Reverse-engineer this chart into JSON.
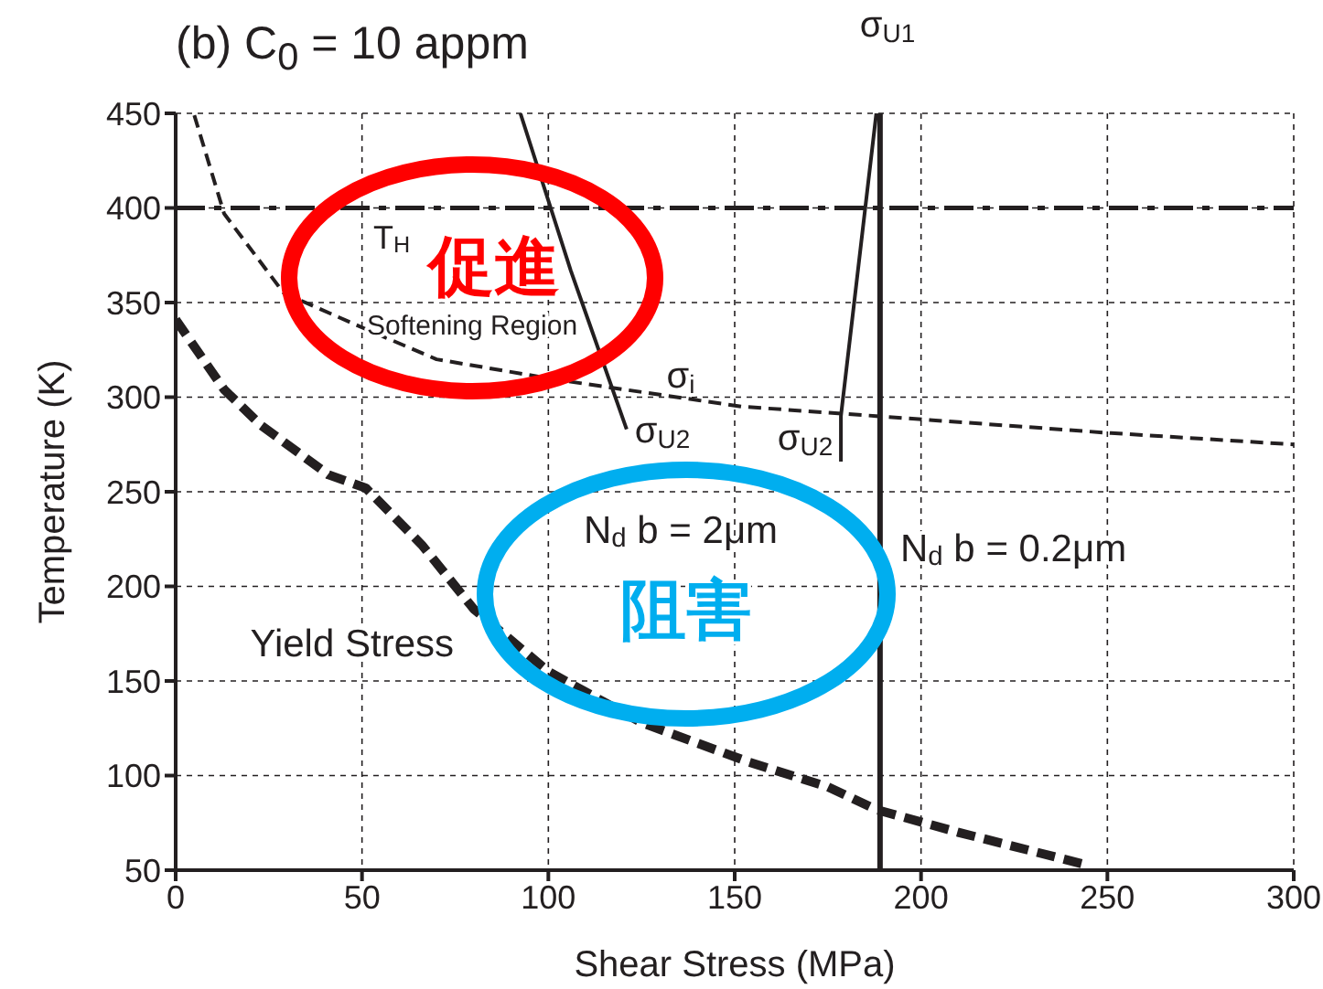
{
  "chart_data": {
    "type": "line",
    "title": "(b) C$_{0}$ = 10 appm",
    "xlabel": "Shear Stress (MPa)",
    "ylabel": "Temperature (K)",
    "xlim": [
      0,
      300
    ],
    "xticks": [
      0,
      50,
      100,
      150,
      200,
      250,
      300
    ],
    "ylim": [
      50,
      450
    ],
    "yticks": [
      50,
      100,
      150,
      200,
      250,
      300,
      350,
      400,
      450
    ],
    "grid": true,
    "marker": "none",
    "series": [
      {
        "color": "#231f20",
        "line_style": "dashed",
        "x": [
          0,
          13,
          23,
          41,
          51,
          66,
          80,
          100,
          125,
          154,
          175,
          188,
          210,
          230,
          244
        ],
        "values": [
          341,
          304,
          285,
          259,
          252,
          222,
          188,
          155,
          128,
          107,
          94,
          82,
          70,
          60,
          53
        ]
      },
      {
        "color": "#231f20",
        "line_style": "dashed",
        "x": [
          5,
          13,
          29,
          51,
          70,
          103,
          152,
          188,
          251,
          300
        ],
        "values": [
          449,
          397,
          355,
          336,
          320,
          309,
          295,
          290,
          281,
          275
        ]
      },
      {
        "color": "#231f20",
        "line_style": "solid",
        "x": [
          92.5,
          106,
          111,
          121
        ],
        "values": [
          450,
          367,
          339,
          283
        ]
      },
      {
        "color": "#231f20",
        "line_style": "solid",
        "x": [
          188,
          178.5,
          178.5
        ],
        "values": [
          450,
          290,
          266
        ]
      },
      {
        "color": "#231f20",
        "line_style": "solid",
        "x": [
          189,
          189
        ],
        "values": [
          450,
          50
        ]
      }
    ],
    "ref_lines": [
      {
        "axis": "y",
        "value": 400,
        "color": "#231f20",
        "line_style": "dashed"
      }
    ],
    "annotations": [
      "T$_{H}$",
      "Softening Region",
      "σ$_{i}$",
      "σ$_{U2}$",
      "σ$_{U1}$",
      "σ$_{U2}$",
      "N$_{d}$ b = 2μm",
      "N$_{d}$ b = 0.2μm",
      "Yield Stress",
      "促進",
      "阻害"
    ]
  }
}
